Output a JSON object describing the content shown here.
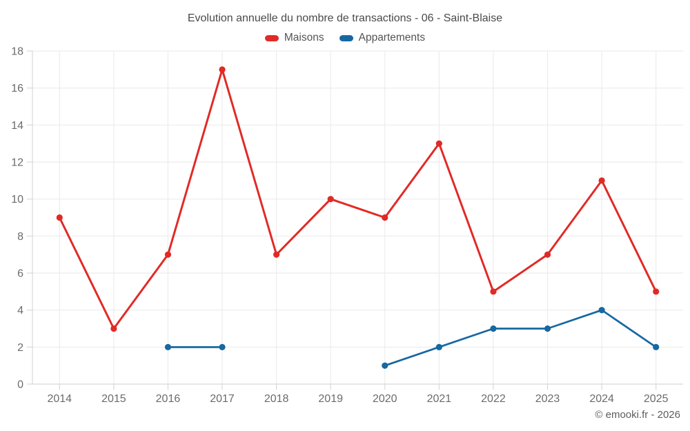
{
  "title": "Evolution annuelle du nombre de transactions - 06 - Saint-Blaise",
  "footer": "© emooki.fr - 2026",
  "legend": {
    "items": [
      {
        "label": "Maisons",
        "color": "#e12a26"
      },
      {
        "label": "Appartements",
        "color": "#1668a1"
      }
    ]
  },
  "chart_data": {
    "type": "line",
    "title": "Evolution annuelle du nombre de transactions - 06 - Saint-Blaise",
    "categories": [
      "2014",
      "2015",
      "2016",
      "2017",
      "2018",
      "2019",
      "2020",
      "2021",
      "2022",
      "2023",
      "2024",
      "2025"
    ],
    "series": [
      {
        "name": "Maisons",
        "color": "#e12a26",
        "values": [
          9,
          3,
          7,
          17,
          7,
          10,
          9,
          13,
          5,
          7,
          11,
          5
        ]
      },
      {
        "name": "Appartements",
        "color": "#1668a1",
        "values": [
          null,
          null,
          2,
          2,
          null,
          null,
          1,
          2,
          3,
          3,
          4,
          2
        ]
      }
    ],
    "xlabel": "",
    "ylabel": "",
    "ylim": [
      0,
      18
    ],
    "ytick_step": 2,
    "grid": true,
    "legend_position": "top"
  }
}
